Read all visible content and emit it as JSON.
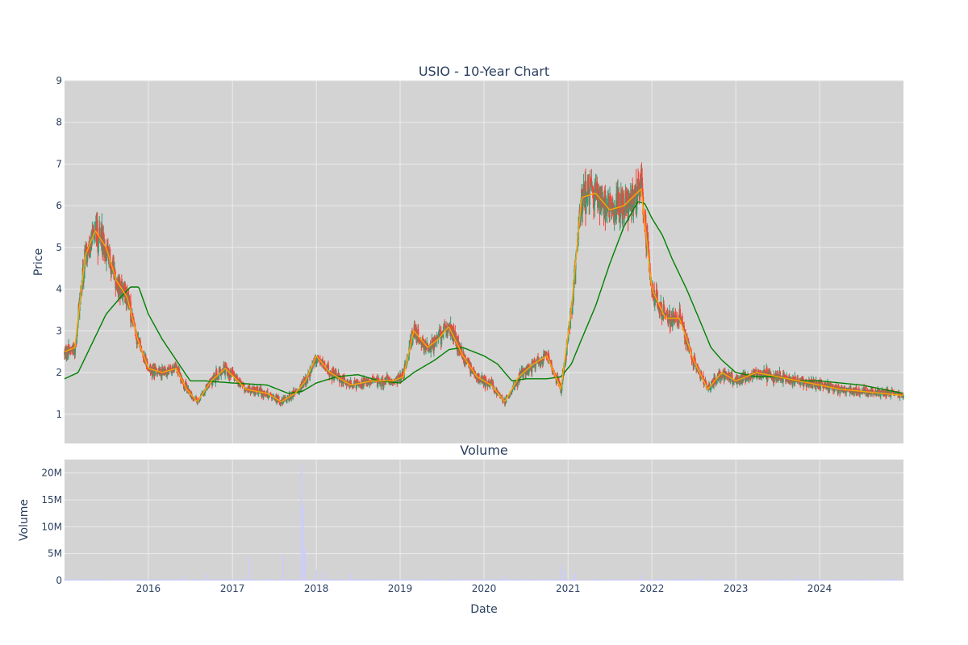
{
  "chart_data": [
    {
      "type": "candlestick",
      "title": "USIO - 10-Year Chart",
      "xlabel": "",
      "ylabel": "Price",
      "xlim": [
        "2015-01-01",
        "2024-12-31"
      ],
      "ylim": [
        0.3,
        9.0
      ],
      "yticks": [
        1,
        2,
        3,
        4,
        5,
        6,
        7,
        8,
        9
      ],
      "xticks": [
        "2016",
        "2017",
        "2018",
        "2019",
        "2020",
        "2021",
        "2022",
        "2023",
        "2024"
      ],
      "grid": true,
      "colors": {
        "background": "#d3d3d3",
        "grid": "#ebebeb",
        "increasing": "#3d9970",
        "decreasing": "#ff4136",
        "ma_short": "#ffa500",
        "ma_long": "#008000"
      },
      "series": [
        {
          "kind": "ma_short",
          "x": [
            "2015-01-01",
            "2015-02-15",
            "2015-04-01",
            "2015-05-15",
            "2015-07-01",
            "2015-08-15",
            "2015-10-01",
            "2015-11-15",
            "2016-01-01",
            "2016-03-01",
            "2016-05-01",
            "2016-06-15",
            "2016-08-01",
            "2016-10-01",
            "2016-12-01",
            "2017-03-01",
            "2017-06-01",
            "2017-08-01",
            "2017-10-01",
            "2017-11-15",
            "2018-01-01",
            "2018-03-01",
            "2018-06-01",
            "2018-09-01",
            "2018-12-01",
            "2019-01-15",
            "2019-03-01",
            "2019-05-01",
            "2019-06-15",
            "2019-08-01",
            "2019-10-01",
            "2019-12-01",
            "2020-02-01",
            "2020-04-01",
            "2020-06-01",
            "2020-08-01",
            "2020-10-01",
            "2020-12-01",
            "2021-01-15",
            "2021-03-01",
            "2021-05-01",
            "2021-07-01",
            "2021-09-01",
            "2021-11-15",
            "2022-01-01",
            "2022-03-01",
            "2022-05-01",
            "2022-07-01",
            "2022-09-01",
            "2022-11-01",
            "2023-01-01",
            "2023-04-01",
            "2023-07-01",
            "2023-10-01",
            "2024-01-01",
            "2024-04-01",
            "2024-07-01",
            "2024-10-01",
            "2024-12-31"
          ],
          "y": [
            2.5,
            2.6,
            4.8,
            5.4,
            5.0,
            4.2,
            3.8,
            2.8,
            2.1,
            2.0,
            2.1,
            1.6,
            1.3,
            1.8,
            2.1,
            1.6,
            1.5,
            1.3,
            1.5,
            1.8,
            2.4,
            2.0,
            1.7,
            1.8,
            1.8,
            1.9,
            3.0,
            2.6,
            2.8,
            3.1,
            2.4,
            1.9,
            1.7,
            1.3,
            1.9,
            2.2,
            2.4,
            1.6,
            3.5,
            6.2,
            6.3,
            5.9,
            6.0,
            6.4,
            4.0,
            3.3,
            3.3,
            2.3,
            1.6,
            2.0,
            1.8,
            2.0,
            1.9,
            1.8,
            1.7,
            1.6,
            1.55,
            1.5,
            1.45
          ]
        },
        {
          "kind": "ma_long",
          "x": [
            "2015-01-01",
            "2015-03-01",
            "2015-05-01",
            "2015-07-01",
            "2015-09-01",
            "2015-10-15",
            "2015-11-20",
            "2016-01-01",
            "2016-03-01",
            "2016-05-01",
            "2016-07-01",
            "2016-09-01",
            "2017-01-01",
            "2017-06-01",
            "2017-09-01",
            "2017-11-01",
            "2018-01-01",
            "2018-04-01",
            "2018-07-01",
            "2018-10-01",
            "2019-01-01",
            "2019-03-01",
            "2019-06-01",
            "2019-08-01",
            "2019-10-01",
            "2020-01-01",
            "2020-03-01",
            "2020-05-01",
            "2020-07-01",
            "2020-10-01",
            "2020-12-01",
            "2021-01-15",
            "2021-03-01",
            "2021-05-01",
            "2021-07-01",
            "2021-09-01",
            "2021-11-01",
            "2021-12-01",
            "2022-01-01",
            "2022-02-15",
            "2022-04-01",
            "2022-06-01",
            "2022-08-01",
            "2022-09-15",
            "2022-11-01",
            "2023-01-01",
            "2023-04-01",
            "2023-07-01",
            "2023-10-01",
            "2024-01-01",
            "2024-04-01",
            "2024-07-01",
            "2024-10-01",
            "2024-12-31"
          ],
          "y": [
            1.85,
            2.0,
            2.7,
            3.4,
            3.8,
            4.05,
            4.05,
            3.4,
            2.8,
            2.3,
            1.8,
            1.8,
            1.75,
            1.7,
            1.5,
            1.55,
            1.75,
            1.9,
            1.95,
            1.8,
            1.75,
            2.0,
            2.3,
            2.55,
            2.6,
            2.4,
            2.2,
            1.8,
            1.85,
            1.85,
            1.9,
            2.2,
            2.8,
            3.6,
            4.6,
            5.5,
            6.1,
            6.05,
            5.7,
            5.3,
            4.7,
            4.0,
            3.2,
            2.6,
            2.3,
            2.0,
            1.9,
            1.9,
            1.8,
            1.8,
            1.75,
            1.7,
            1.6,
            1.5
          ]
        }
      ]
    },
    {
      "type": "bar",
      "title": "Volume",
      "xlabel": "Date",
      "ylabel": "Volume",
      "ylim": [
        0,
        22500000
      ],
      "yticks": [
        {
          "v": 0,
          "label": "0"
        },
        {
          "v": 5000000,
          "label": "5M"
        },
        {
          "v": 10000000,
          "label": "10M"
        },
        {
          "v": 15000000,
          "label": "15M"
        },
        {
          "v": 20000000,
          "label": "20M"
        }
      ],
      "xticks": [
        "2016",
        "2017",
        "2018",
        "2019",
        "2020",
        "2021",
        "2022",
        "2023",
        "2024"
      ],
      "color": "#ccccff",
      "peaks": [
        {
          "x": "2016-06-01",
          "v": 700000
        },
        {
          "x": "2016-09-15",
          "v": 1200000
        },
        {
          "x": "2017-03-15",
          "v": 4500000
        },
        {
          "x": "2017-08-10",
          "v": 4800000
        },
        {
          "x": "2017-10-28",
          "v": 21500000
        },
        {
          "x": "2017-11-05",
          "v": 14000000
        },
        {
          "x": "2017-11-12",
          "v": 6000000
        },
        {
          "x": "2018-01-01",
          "v": 2000000
        },
        {
          "x": "2018-02-01",
          "v": 1800000
        },
        {
          "x": "2018-06-01",
          "v": 1200000
        },
        {
          "x": "2020-04-01",
          "v": 800000
        },
        {
          "x": "2020-12-01",
          "v": 2800000
        },
        {
          "x": "2020-12-20",
          "v": 2000000
        },
        {
          "x": "2021-02-01",
          "v": 1300000
        },
        {
          "x": "2021-11-15",
          "v": 1100000
        },
        {
          "x": "2022-08-01",
          "v": 700000
        },
        {
          "x": "2023-10-01",
          "v": 600000
        }
      ]
    }
  ]
}
